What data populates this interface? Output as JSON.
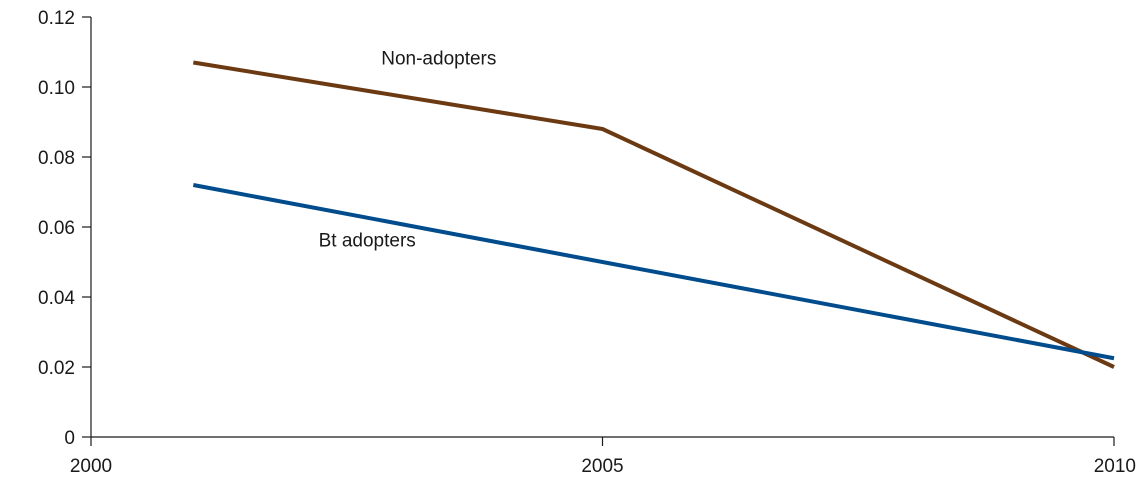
{
  "chart_data": {
    "type": "line",
    "title": "",
    "xlabel": "",
    "ylabel": "",
    "xlim": [
      2000,
      2010
    ],
    "ylim": [
      0,
      0.12
    ],
    "x_ticks": [
      2000,
      2005,
      2010
    ],
    "x_tick_labels": [
      "2000",
      "2005",
      "2010"
    ],
    "y_ticks": [
      0,
      0.02,
      0.04,
      0.06,
      0.08,
      0.1,
      0.12
    ],
    "y_tick_labels": [
      "0",
      "0.02",
      "0.04",
      "0.06",
      "0.08",
      "0.10",
      "0.12"
    ],
    "grid": false,
    "legend": "none",
    "series": [
      {
        "name": "Non-adopters",
        "color": "#6b3a12",
        "x": [
          2001,
          2005,
          2010
        ],
        "y": [
          0.107,
          0.088,
          0.02
        ]
      },
      {
        "name": "Bt adopters",
        "color": "#004c8c",
        "x": [
          2001,
          2010
        ],
        "y": [
          0.072,
          0.0225
        ]
      }
    ]
  }
}
